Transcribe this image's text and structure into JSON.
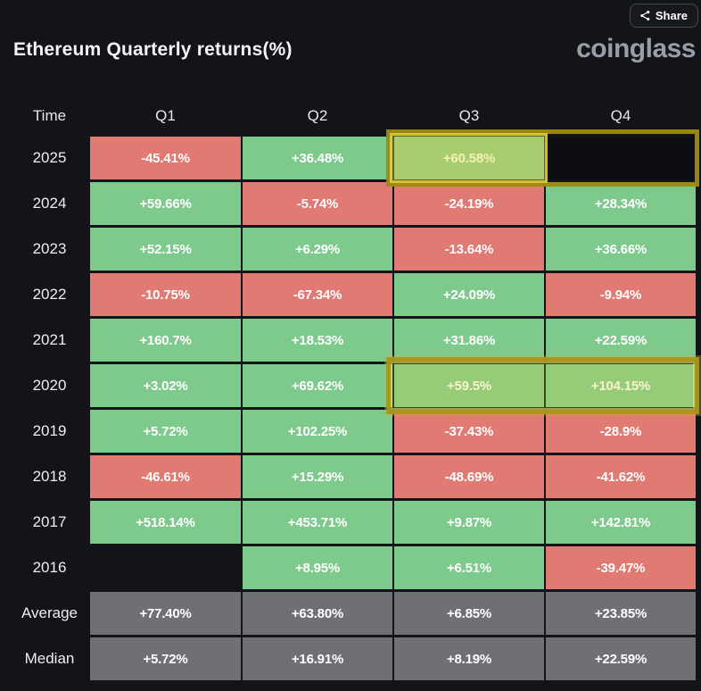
{
  "header": {
    "share_label": "Share",
    "title": "Ethereum Quarterly returns(%)",
    "logo": "coinglass"
  },
  "colors": {
    "positive": "#7ec98c",
    "negative": "#e07a72",
    "neutral": "#6f7075",
    "highlight_outline": "#ab9715",
    "background": "#121419"
  },
  "table": {
    "columns": [
      "Time",
      "Q1",
      "Q2",
      "Q3",
      "Q4"
    ],
    "rows": [
      {
        "label": "2025",
        "cells": [
          {
            "text": "-45.41%",
            "type": "neg"
          },
          {
            "text": "+36.48%",
            "type": "pos"
          },
          {
            "text": "+60.58%",
            "type": "pos"
          },
          {
            "text": "",
            "type": "dark"
          }
        ]
      },
      {
        "label": "2024",
        "cells": [
          {
            "text": "+59.66%",
            "type": "pos"
          },
          {
            "text": "-5.74%",
            "type": "neg"
          },
          {
            "text": "-24.19%",
            "type": "neg"
          },
          {
            "text": "+28.34%",
            "type": "pos"
          }
        ]
      },
      {
        "label": "2023",
        "cells": [
          {
            "text": "+52.15%",
            "type": "pos"
          },
          {
            "text": "+6.29%",
            "type": "pos"
          },
          {
            "text": "-13.64%",
            "type": "neg"
          },
          {
            "text": "+36.66%",
            "type": "pos"
          }
        ]
      },
      {
        "label": "2022",
        "cells": [
          {
            "text": "-10.75%",
            "type": "neg"
          },
          {
            "text": "-67.34%",
            "type": "neg"
          },
          {
            "text": "+24.09%",
            "type": "pos"
          },
          {
            "text": "-9.94%",
            "type": "neg"
          }
        ]
      },
      {
        "label": "2021",
        "cells": [
          {
            "text": "+160.7%",
            "type": "pos"
          },
          {
            "text": "+18.53%",
            "type": "pos"
          },
          {
            "text": "+31.86%",
            "type": "pos"
          },
          {
            "text": "+22.59%",
            "type": "pos"
          }
        ]
      },
      {
        "label": "2020",
        "cells": [
          {
            "text": "+3.02%",
            "type": "pos"
          },
          {
            "text": "+69.62%",
            "type": "pos"
          },
          {
            "text": "+59.5%",
            "type": "pos"
          },
          {
            "text": "+104.15%",
            "type": "pos"
          }
        ]
      },
      {
        "label": "2019",
        "cells": [
          {
            "text": "+5.72%",
            "type": "pos"
          },
          {
            "text": "+102.25%",
            "type": "pos"
          },
          {
            "text": "-37.43%",
            "type": "neg"
          },
          {
            "text": "-28.9%",
            "type": "neg"
          }
        ]
      },
      {
        "label": "2018",
        "cells": [
          {
            "text": "-46.61%",
            "type": "neg"
          },
          {
            "text": "+15.29%",
            "type": "pos"
          },
          {
            "text": "-48.69%",
            "type": "neg"
          },
          {
            "text": "-41.62%",
            "type": "neg"
          }
        ]
      },
      {
        "label": "2017",
        "cells": [
          {
            "text": "+518.14%",
            "type": "pos"
          },
          {
            "text": "+453.71%",
            "type": "pos"
          },
          {
            "text": "+9.87%",
            "type": "pos"
          },
          {
            "text": "+142.81%",
            "type": "pos"
          }
        ]
      },
      {
        "label": "2016",
        "cells": [
          {
            "text": "",
            "type": "none"
          },
          {
            "text": "+8.95%",
            "type": "pos"
          },
          {
            "text": "+6.51%",
            "type": "pos"
          },
          {
            "text": "-39.47%",
            "type": "neg"
          }
        ]
      },
      {
        "label": "Average",
        "cells": [
          {
            "text": "+77.40%",
            "type": "avg"
          },
          {
            "text": "+63.80%",
            "type": "avg"
          },
          {
            "text": "+6.85%",
            "type": "avg"
          },
          {
            "text": "+23.85%",
            "type": "avg"
          }
        ]
      },
      {
        "label": "Median",
        "cells": [
          {
            "text": "+5.72%",
            "type": "avg"
          },
          {
            "text": "+16.91%",
            "type": "avg"
          },
          {
            "text": "+8.19%",
            "type": "avg"
          },
          {
            "text": "+22.59%",
            "type": "avg"
          }
        ]
      }
    ]
  },
  "chart_data": {
    "type": "table",
    "title": "Ethereum Quarterly returns(%)",
    "columns": [
      "Time",
      "Q1",
      "Q2",
      "Q3",
      "Q4"
    ],
    "unit": "percent",
    "rows": [
      {
        "time": "2025",
        "q1": -45.41,
        "q2": 36.48,
        "q3": 60.58,
        "q4": null
      },
      {
        "time": "2024",
        "q1": 59.66,
        "q2": -5.74,
        "q3": -24.19,
        "q4": 28.34
      },
      {
        "time": "2023",
        "q1": 52.15,
        "q2": 6.29,
        "q3": -13.64,
        "q4": 36.66
      },
      {
        "time": "2022",
        "q1": -10.75,
        "q2": -67.34,
        "q3": 24.09,
        "q4": -9.94
      },
      {
        "time": "2021",
        "q1": 160.7,
        "q2": 18.53,
        "q3": 31.86,
        "q4": 22.59
      },
      {
        "time": "2020",
        "q1": 3.02,
        "q2": 69.62,
        "q3": 59.5,
        "q4": 104.15
      },
      {
        "time": "2019",
        "q1": 5.72,
        "q2": 102.25,
        "q3": -37.43,
        "q4": -28.9
      },
      {
        "time": "2018",
        "q1": -46.61,
        "q2": 15.29,
        "q3": -48.69,
        "q4": -41.62
      },
      {
        "time": "2017",
        "q1": 518.14,
        "q2": 453.71,
        "q3": 9.87,
        "q4": 142.81
      },
      {
        "time": "2016",
        "q1": null,
        "q2": 8.95,
        "q3": 6.51,
        "q4": -39.47
      },
      {
        "time": "Average",
        "q1": 77.4,
        "q2": 63.8,
        "q3": 6.85,
        "q4": 23.85
      },
      {
        "time": "Median",
        "q1": 5.72,
        "q2": 16.91,
        "q3": 8.19,
        "q4": 22.59
      }
    ],
    "highlights": [
      {
        "row": "2025",
        "quarters": [
          "Q3",
          "Q4"
        ]
      },
      {
        "row": "2020",
        "quarters": [
          "Q3",
          "Q4"
        ]
      }
    ],
    "color_coding": "green = positive return, red = negative return, gray = Average/Median summary rows"
  }
}
